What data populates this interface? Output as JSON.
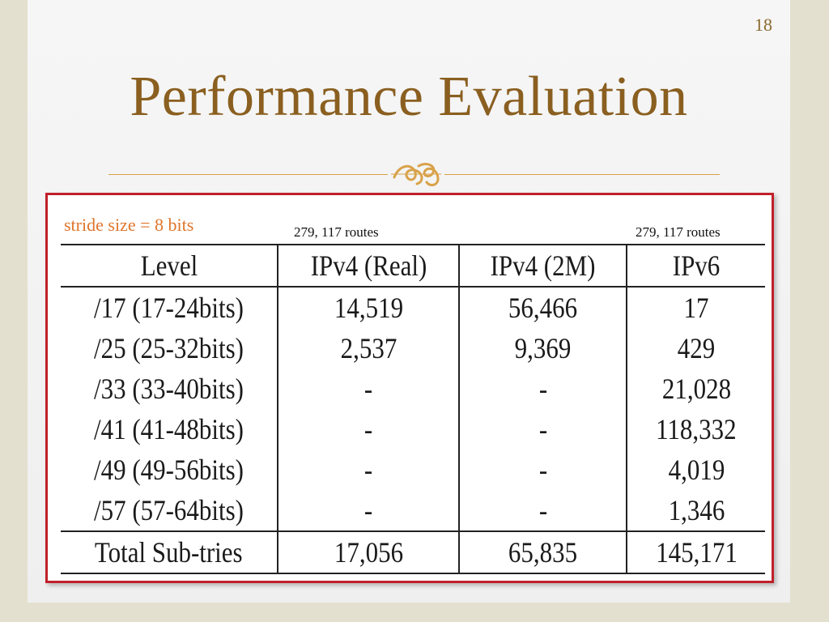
{
  "slide": {
    "page_number": "18",
    "title": "Performance Evaluation"
  },
  "annotations": {
    "stride": "stride size = 8 bits",
    "routes_ipv4_real": "279, 117 routes",
    "routes_ipv6": "279, 117 routes"
  },
  "table": {
    "headers": [
      "Level",
      "IPv4 (Real)",
      "IPv4 (2M)",
      "IPv6"
    ],
    "rows": [
      [
        "/17 (17-24bits)",
        "14,519",
        "56,466",
        "17"
      ],
      [
        "/25 (25-32bits)",
        "2,537",
        "9,369",
        "429"
      ],
      [
        "/33 (33-40bits)",
        "-",
        "-",
        "21,028"
      ],
      [
        "/41 (41-48bits)",
        "-",
        "-",
        "118,332"
      ],
      [
        "/49 (49-56bits)",
        "-",
        "-",
        "4,019"
      ],
      [
        "/57 (57-64bits)",
        "-",
        "-",
        "1,346"
      ]
    ],
    "total": [
      "Total Sub-tries",
      "17,056",
      "65,835",
      "145,171"
    ]
  },
  "colors": {
    "title": "#8a5f20",
    "frame": "#c0202a",
    "stride": "#e0752b",
    "divider": "#d9a24a"
  },
  "icons": {
    "divider_ornament": "flourish-icon"
  }
}
